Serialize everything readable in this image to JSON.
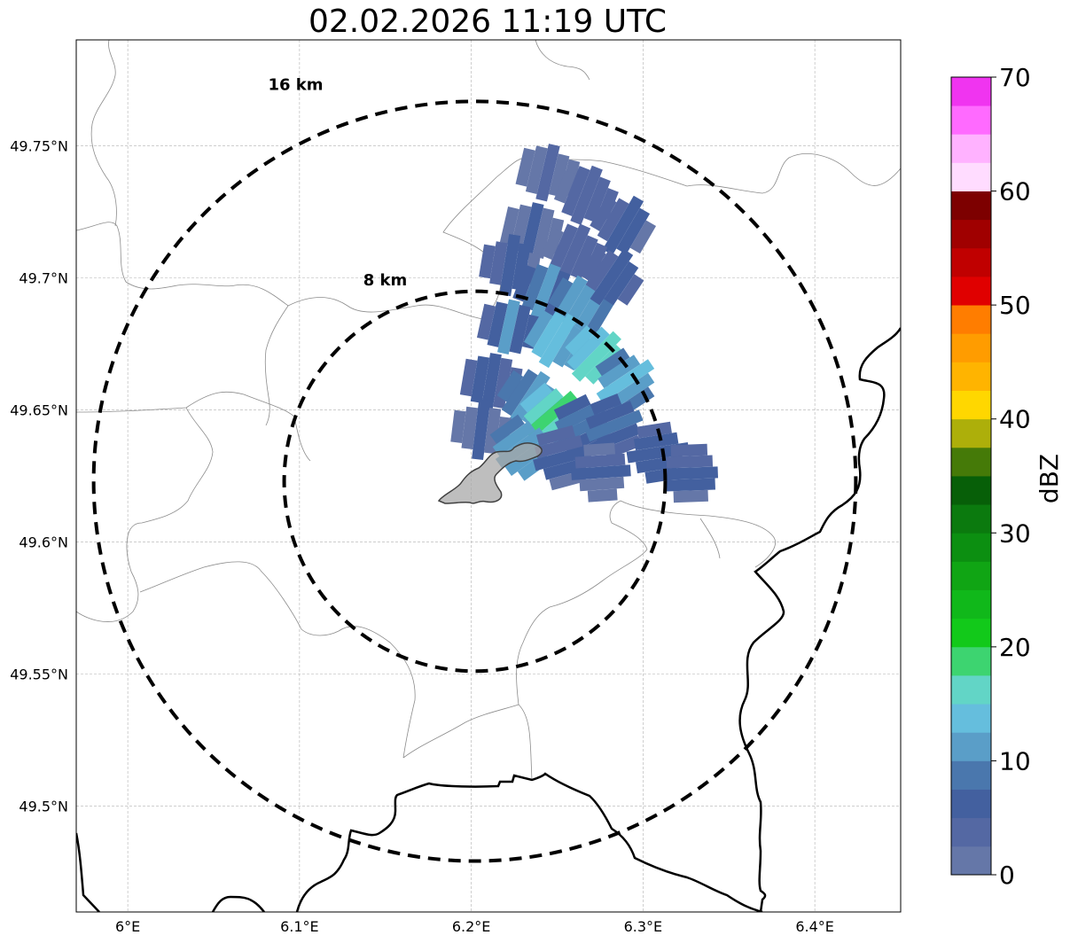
{
  "title": "02.02.2026 11:19 UTC",
  "map": {
    "lon_range": [
      5.97,
      6.45
    ],
    "lat_range": [
      49.46,
      49.79
    ],
    "center": {
      "lon": 6.202,
      "lat": 49.623
    },
    "x_ticks": [
      {
        "value": 6.0,
        "label": "6°E"
      },
      {
        "value": 6.1,
        "label": "6.1°E"
      },
      {
        "value": 6.2,
        "label": "6.2°E"
      },
      {
        "value": 6.3,
        "label": "6.3°E"
      },
      {
        "value": 6.4,
        "label": "6.4°E"
      }
    ],
    "y_ticks": [
      {
        "value": 49.5,
        "label": "49.5°N"
      },
      {
        "value": 49.55,
        "label": "49.55°N"
      },
      {
        "value": 49.6,
        "label": "49.6°N"
      },
      {
        "value": 49.65,
        "label": "49.65°N"
      },
      {
        "value": 49.7,
        "label": "49.7°N"
      },
      {
        "value": 49.75,
        "label": "49.75°N"
      }
    ],
    "range_rings": [
      {
        "radius_km": 8,
        "label": "8 km"
      },
      {
        "radius_km": 16,
        "label": "16 km"
      }
    ],
    "grid": true
  },
  "colorbar": {
    "label": "dBZ",
    "min": 0,
    "max": 70,
    "ticks": [
      {
        "value": 0,
        "label": "0"
      },
      {
        "value": 10,
        "label": "10"
      },
      {
        "value": 20,
        "label": "20"
      },
      {
        "value": 30,
        "label": "30"
      },
      {
        "value": 40,
        "label": "40"
      },
      {
        "value": 50,
        "label": "50"
      },
      {
        "value": 60,
        "label": "60"
      },
      {
        "value": 70,
        "label": "70"
      }
    ],
    "colors": [
      "#6577a8",
      "#5468a3",
      "#43609f",
      "#4a77ad",
      "#5a9ec8",
      "#65bedd",
      "#62d5c6",
      "#3dd470",
      "#12c91a",
      "#10b81a",
      "#10a514",
      "#0c8f11",
      "#0b7a0e",
      "#075f08",
      "#457a08",
      "#adaf0a",
      "#ffd700",
      "#ffb400",
      "#ff9c00",
      "#ff7d00",
      "#e00000",
      "#c00000",
      "#a00000",
      "#7d0000",
      "#ffdcff",
      "#ffb2ff",
      "#ff6aff",
      "#f034f0"
    ]
  },
  "reflectivity_cells": [
    {
      "lon": 6.2446,
      "lat": 49.7398,
      "dbz": 3
    },
    {
      "lon": 6.2671,
      "lat": 49.7312,
      "dbz": 5
    },
    {
      "lon": 6.2884,
      "lat": 49.7198,
      "dbz": 6
    },
    {
      "lon": 6.2354,
      "lat": 49.7178,
      "dbz": 4
    },
    {
      "lon": 6.2596,
      "lat": 49.7094,
      "dbz": 5
    },
    {
      "lon": 6.2225,
      "lat": 49.7048,
      "dbz": 6
    },
    {
      "lon": 6.2434,
      "lat": 49.6949,
      "dbz": 10
    },
    {
      "lon": 6.2634,
      "lat": 49.6898,
      "dbz": 12
    },
    {
      "lon": 6.2817,
      "lat": 49.7003,
      "dbz": 7
    },
    {
      "lon": 6.2218,
      "lat": 49.6814,
      "dbz": 9
    },
    {
      "lon": 6.2506,
      "lat": 49.6762,
      "dbz": 14
    },
    {
      "lon": 6.2729,
      "lat": 49.6702,
      "dbz": 16
    },
    {
      "lon": 6.2897,
      "lat": 49.6609,
      "dbz": 13
    },
    {
      "lon": 6.2117,
      "lat": 49.6608,
      "dbz": 6
    },
    {
      "lon": 6.2338,
      "lat": 49.6542,
      "dbz": 11
    },
    {
      "lon": 6.2465,
      "lat": 49.648,
      "dbz": 18
    },
    {
      "lon": 6.2648,
      "lat": 49.6432,
      "dbz": 9
    },
    {
      "lon": 6.2833,
      "lat": 49.644,
      "dbz": 8
    },
    {
      "lon": 6.2057,
      "lat": 49.6426,
      "dbz": 4
    },
    {
      "lon": 6.2288,
      "lat": 49.6356,
      "dbz": 13
    },
    {
      "lon": 6.2527,
      "lat": 49.6318,
      "dbz": 6
    },
    {
      "lon": 6.2755,
      "lat": 49.6263,
      "dbz": 5
    },
    {
      "lon": 6.3087,
      "lat": 49.6338,
      "dbz": 8
    },
    {
      "lon": 6.3273,
      "lat": 49.626,
      "dbz": 6
    }
  ]
}
